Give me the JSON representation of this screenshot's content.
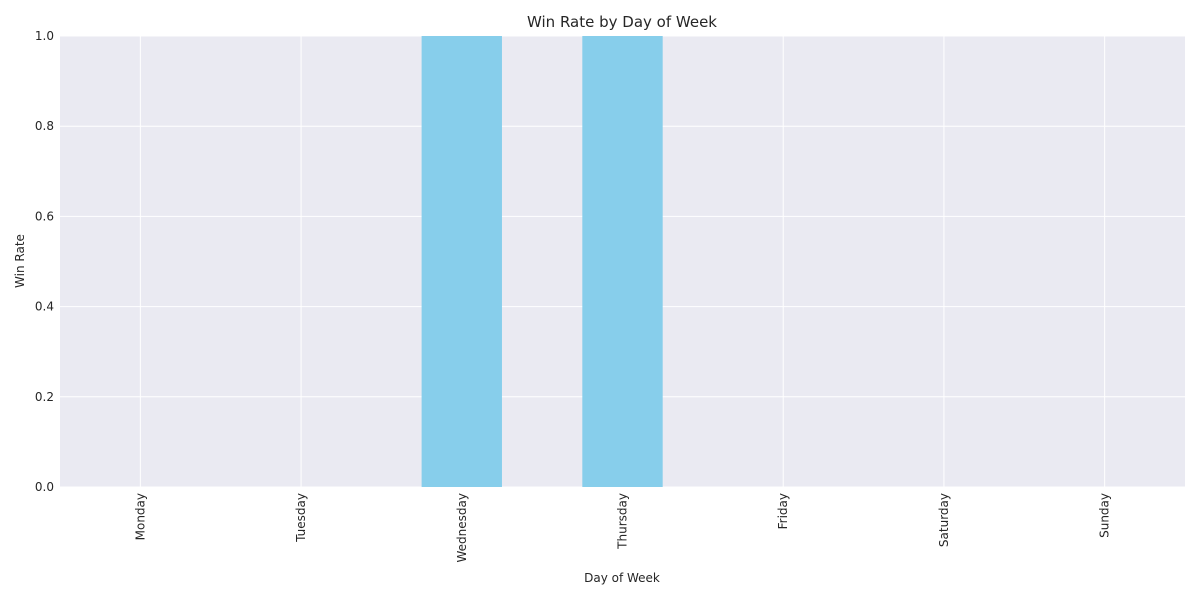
{
  "chart_data": {
    "type": "bar",
    "title": "Win Rate by Day of Week",
    "xlabel": "Day of Week",
    "ylabel": "Win Rate",
    "categories": [
      "Monday",
      "Tuesday",
      "Wednesday",
      "Thursday",
      "Friday",
      "Saturday",
      "Sunday"
    ],
    "values": [
      0,
      0,
      1.0,
      1.0,
      0,
      0,
      0
    ],
    "ylim": [
      0,
      1.0
    ],
    "yticks": [
      "0.0",
      "0.2",
      "0.4",
      "0.6",
      "0.8",
      "1.0"
    ],
    "grid": true,
    "legend": "none",
    "colors": {
      "bar": "#87ceeb",
      "plot_background": "#eaeaf2",
      "grid": "#ffffff",
      "text": "#262626"
    }
  }
}
